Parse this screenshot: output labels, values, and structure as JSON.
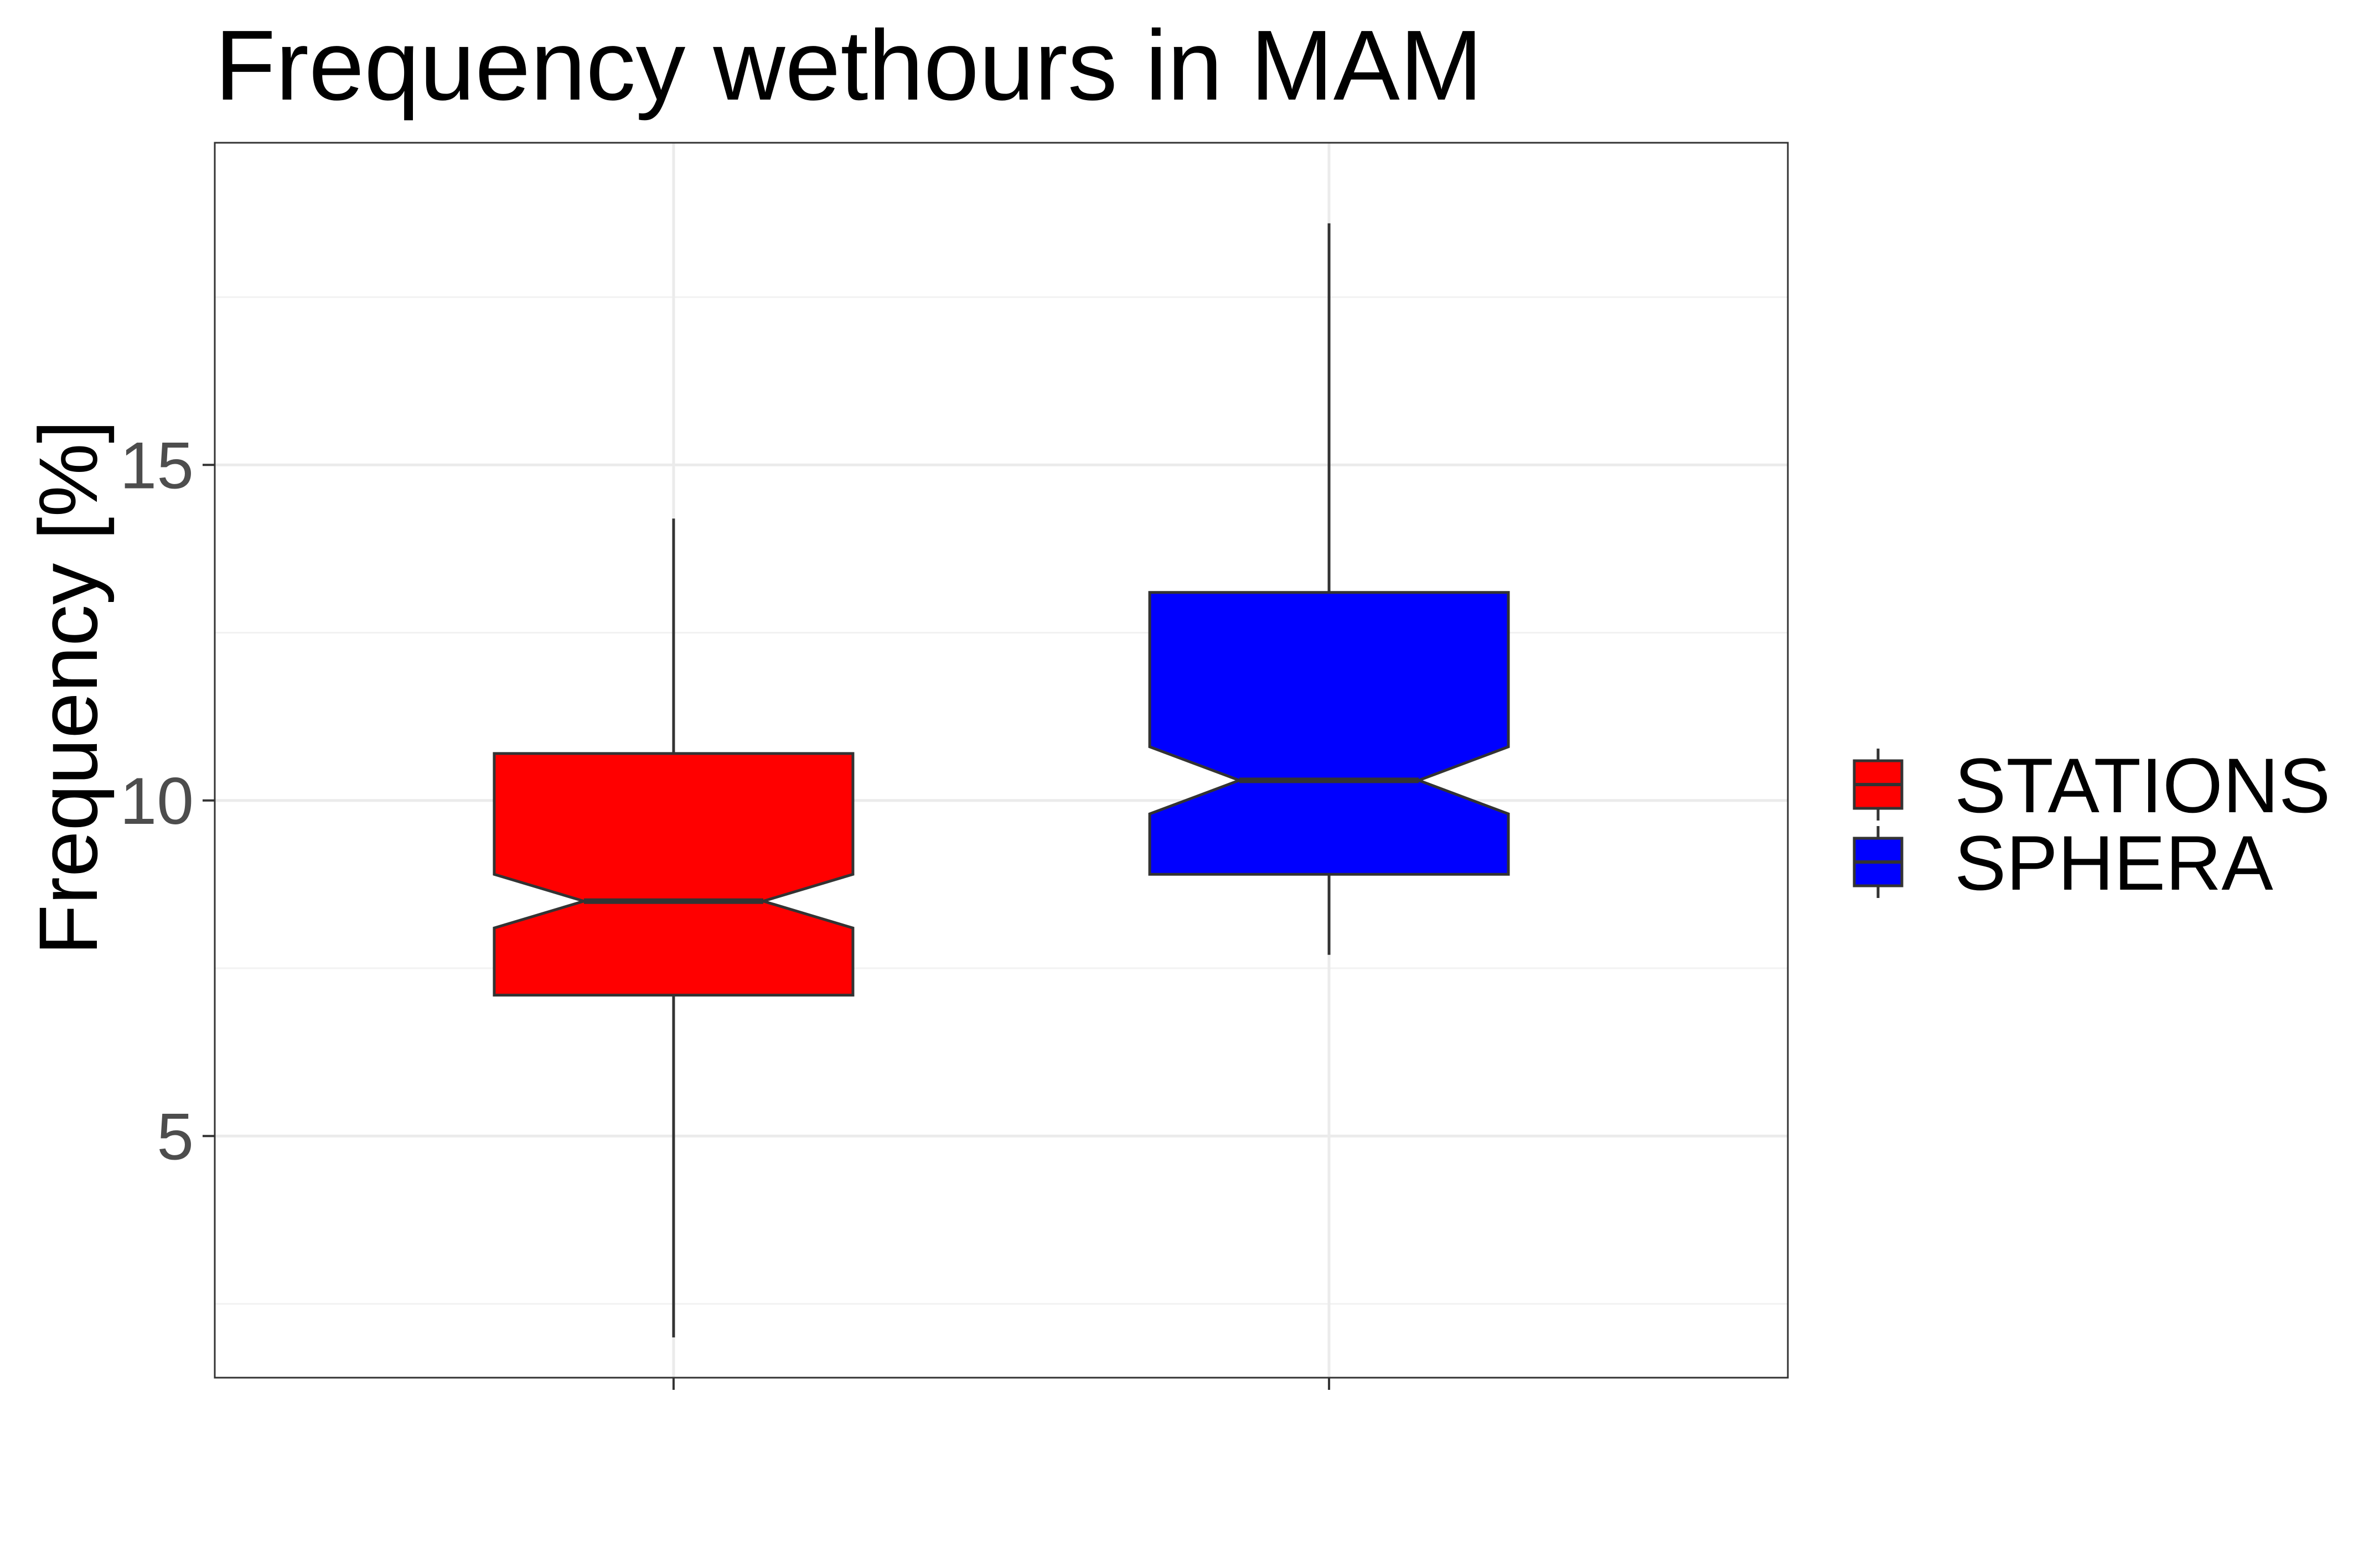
{
  "chart_data": {
    "type": "boxplot",
    "title": "Frequency wethours in MAM",
    "xlabel": "",
    "ylabel": "Frequency [%]",
    "ylim": [
      1.4,
      19.8
    ],
    "yticks": [
      5,
      10,
      15
    ],
    "notched": true,
    "grid": true,
    "legend_position": "right",
    "series": [
      {
        "name": "STATIONS",
        "color": "#ff0000",
        "whisker_low": 2.0,
        "q1": 7.1,
        "median": 8.5,
        "q3": 10.7,
        "whisker_high": 14.2,
        "notch_low": 8.1,
        "notch_high": 8.9
      },
      {
        "name": "SPHERA",
        "color": "#0000ff",
        "whisker_low": 7.7,
        "q1": 8.9,
        "median": 10.3,
        "q3": 13.1,
        "whisker_high": 18.6,
        "notch_low": 9.8,
        "notch_high": 10.8
      }
    ]
  }
}
